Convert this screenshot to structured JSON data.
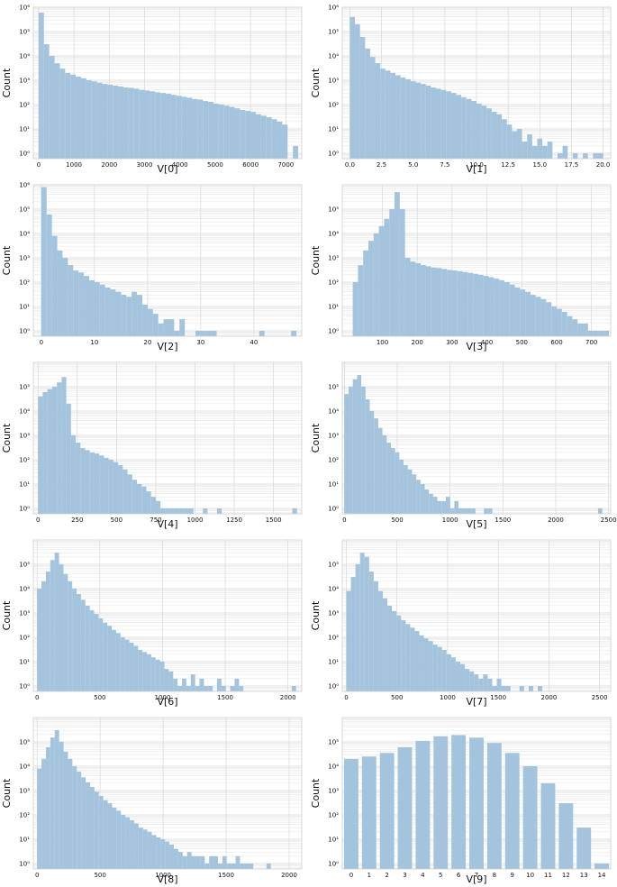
{
  "chart_data": [
    {
      "type": "bar",
      "title": "",
      "xlabel": "V[0]",
      "ylabel": "Count",
      "yscale": "log",
      "grid": true,
      "xlim": [
        -150,
        7450
      ],
      "ylim": [
        0.6,
        1000000
      ],
      "xticks": [
        0,
        1000,
        2000,
        3000,
        4000,
        5000,
        6000,
        7000
      ],
      "yticks": [
        1,
        10,
        100,
        1000,
        10000,
        100000,
        1000000
      ],
      "bin_edges": [
        0,
        150,
        300,
        450,
        600,
        750,
        900,
        1050,
        1200,
        1350,
        1500,
        1650,
        1800,
        1950,
        2100,
        2250,
        2400,
        2550,
        2700,
        2850,
        3000,
        3150,
        3300,
        3450,
        3600,
        3750,
        3900,
        4050,
        4200,
        4350,
        4500,
        4650,
        4800,
        4950,
        5100,
        5250,
        5400,
        5550,
        5700,
        5850,
        6000,
        6150,
        6300,
        6450,
        6600,
        6750,
        6900,
        7050,
        7200,
        7350
      ],
      "values": [
        600000,
        30000,
        10000,
        5000,
        3000,
        2000,
        1700,
        1400,
        1200,
        1000,
        900,
        800,
        700,
        650,
        600,
        550,
        500,
        480,
        450,
        400,
        380,
        350,
        320,
        300,
        280,
        250,
        230,
        210,
        190,
        170,
        160,
        140,
        130,
        110,
        100,
        90,
        80,
        70,
        60,
        55,
        50,
        40,
        35,
        30,
        25,
        20,
        15,
        0,
        2
      ]
    },
    {
      "type": "bar",
      "title": "",
      "xlabel": "V[1]",
      "ylabel": "Count",
      "yscale": "log",
      "grid": true,
      "xlim": [
        -0.6,
        20.6
      ],
      "ylim": [
        0.6,
        1000000
      ],
      "xticks": [
        0.0,
        2.5,
        5.0,
        7.5,
        10.0,
        12.5,
        15.0,
        17.5,
        20.0
      ],
      "xtick_labels": [
        "0.0",
        "2.5",
        "5.0",
        "7.5",
        "10.0",
        "12.5",
        "15.0",
        "17.5",
        "20.0"
      ],
      "yticks": [
        1,
        10,
        100,
        1000,
        10000,
        100000,
        1000000
      ],
      "bin_edges": [
        0,
        0.4,
        0.8,
        1.2,
        1.6,
        2.0,
        2.4,
        2.8,
        3.2,
        3.6,
        4.0,
        4.4,
        4.8,
        5.2,
        5.6,
        6.0,
        6.4,
        6.8,
        7.2,
        7.6,
        8.0,
        8.4,
        8.8,
        9.2,
        9.6,
        10.0,
        10.4,
        10.8,
        11.2,
        11.6,
        12.0,
        12.4,
        12.8,
        13.2,
        13.6,
        14.0,
        14.4,
        14.8,
        15.2,
        15.6,
        16.0,
        16.4,
        16.8,
        17.2,
        17.6,
        18.0,
        18.4,
        18.8,
        19.2,
        19.6,
        20.0
      ],
      "values": [
        400000,
        200000,
        60000,
        20000,
        9000,
        5000,
        3000,
        2500,
        2000,
        1600,
        1300,
        1100,
        900,
        800,
        700,
        600,
        500,
        450,
        400,
        350,
        300,
        250,
        200,
        170,
        140,
        110,
        90,
        70,
        50,
        40,
        25,
        15,
        8,
        10,
        3,
        6,
        2,
        4,
        2,
        3,
        0,
        1,
        2,
        0,
        1,
        0,
        1,
        0,
        1,
        1
      ]
    },
    {
      "type": "bar",
      "title": "",
      "xlabel": "V[2]",
      "ylabel": "Count",
      "yscale": "log",
      "grid": true,
      "xlim": [
        -1.5,
        49
      ],
      "ylim": [
        0.6,
        1000000
      ],
      "xticks": [
        0,
        10,
        20,
        30,
        40
      ],
      "yticks": [
        1,
        10,
        100,
        1000,
        10000,
        100000,
        1000000
      ],
      "bin_edges": [
        0,
        1,
        2,
        3,
        4,
        5,
        6,
        7,
        8,
        9,
        10,
        11,
        12,
        13,
        14,
        15,
        16,
        17,
        18,
        19,
        20,
        21,
        22,
        23,
        24,
        25,
        26,
        27,
        28,
        29,
        30,
        31,
        32,
        33,
        34,
        35,
        36,
        37,
        38,
        39,
        40,
        41,
        42,
        43,
        44,
        45,
        46,
        47,
        48
      ],
      "values": [
        800000,
        60000,
        8000,
        2000,
        1000,
        500,
        300,
        250,
        180,
        120,
        100,
        80,
        60,
        50,
        40,
        30,
        25,
        40,
        30,
        12,
        8,
        5,
        2,
        3,
        3,
        1,
        3,
        0,
        0,
        1,
        1,
        1,
        1,
        0,
        0,
        0,
        0,
        0,
        0,
        0,
        0,
        1,
        0,
        0,
        0,
        0,
        0,
        1
      ]
    },
    {
      "type": "bar",
      "title": "",
      "xlabel": "V[3]",
      "ylabel": "Count",
      "yscale": "log",
      "grid": true,
      "xlim": [
        -15,
        755
      ],
      "ylim": [
        0.6,
        1000000
      ],
      "xticks": [
        100,
        200,
        300,
        400,
        500,
        600,
        700
      ],
      "yticks": [
        1,
        10,
        100,
        1000,
        10000,
        100000
      ],
      "bin_edges": [
        15,
        30,
        45,
        60,
        75,
        90,
        105,
        120,
        135,
        150,
        165,
        180,
        195,
        210,
        225,
        240,
        255,
        270,
        285,
        300,
        315,
        330,
        345,
        360,
        375,
        390,
        405,
        420,
        435,
        450,
        465,
        480,
        495,
        510,
        525,
        540,
        555,
        570,
        585,
        600,
        615,
        630,
        645,
        660,
        675,
        690,
        705,
        720,
        735,
        750
      ],
      "values": [
        100,
        500,
        2000,
        5000,
        10000,
        20000,
        40000,
        100000,
        500000,
        100000,
        1000,
        700,
        600,
        500,
        450,
        400,
        380,
        350,
        320,
        300,
        280,
        260,
        240,
        220,
        200,
        180,
        160,
        140,
        120,
        100,
        80,
        60,
        50,
        40,
        30,
        25,
        20,
        15,
        10,
        8,
        6,
        4,
        3,
        2,
        2,
        1,
        1,
        1,
        1
      ]
    },
    {
      "type": "bar",
      "title": "",
      "xlabel": "V[4]",
      "ylabel": "Count",
      "yscale": "log",
      "grid": true,
      "xlim": [
        -30,
        1680
      ],
      "ylim": [
        0.6,
        1000000
      ],
      "xticks": [
        0,
        250,
        500,
        750,
        1000,
        1250,
        1500
      ],
      "yticks": [
        1,
        10,
        100,
        1000,
        10000,
        100000
      ],
      "bin_edges": [
        0,
        30,
        60,
        90,
        120,
        150,
        180,
        210,
        240,
        270,
        300,
        330,
        360,
        390,
        420,
        450,
        480,
        510,
        540,
        570,
        600,
        630,
        660,
        690,
        720,
        750,
        780,
        810,
        840,
        870,
        900,
        930,
        960,
        990,
        1020,
        1050,
        1080,
        1110,
        1140,
        1170,
        1200,
        1230,
        1260,
        1290,
        1320,
        1350,
        1380,
        1410,
        1440,
        1470,
        1500,
        1530,
        1560,
        1590,
        1620,
        1650
      ],
      "values": [
        40000,
        60000,
        80000,
        100000,
        150000,
        250000,
        20000,
        1000,
        500,
        300,
        250,
        200,
        180,
        150,
        120,
        100,
        80,
        60,
        40,
        25,
        15,
        10,
        8,
        5,
        3,
        2,
        1,
        1,
        1,
        1,
        1,
        1,
        1,
        0,
        0,
        1,
        0,
        0,
        1,
        0,
        0,
        0,
        0,
        0,
        0,
        0,
        0,
        0,
        0,
        0,
        0,
        0,
        0,
        0,
        1
      ]
    },
    {
      "type": "bar",
      "title": "",
      "xlabel": "V[5]",
      "ylabel": "Count",
      "yscale": "log",
      "grid": true,
      "xlim": [
        -20,
        2520
      ],
      "ylim": [
        0.6,
        1000000
      ],
      "xticks": [
        0,
        500,
        1000,
        1500,
        2000,
        2500
      ],
      "yticks": [
        1,
        10,
        100,
        1000,
        10000,
        100000
      ],
      "bin_edges": [
        0,
        40,
        80,
        120,
        160,
        200,
        240,
        280,
        320,
        360,
        400,
        440,
        480,
        520,
        560,
        600,
        640,
        680,
        720,
        760,
        800,
        840,
        880,
        920,
        960,
        1000,
        1040,
        1080,
        1120,
        1160,
        1200,
        1240,
        1280,
        1320,
        1360,
        1400,
        1440,
        1480,
        1520,
        1560,
        1600,
        1640,
        1680,
        1720,
        1760,
        1800,
        1840,
        1880,
        1920,
        1960,
        2000,
        2040,
        2080,
        2120,
        2160,
        2200,
        2240,
        2280,
        2320,
        2360,
        2400,
        2440
      ],
      "values": [
        50000,
        100000,
        200000,
        300000,
        100000,
        30000,
        10000,
        5000,
        2000,
        1000,
        500,
        300,
        200,
        100,
        60,
        40,
        25,
        15,
        10,
        6,
        4,
        3,
        2,
        2,
        3,
        1,
        2,
        1,
        1,
        1,
        1,
        0,
        0,
        1,
        1,
        0,
        0,
        0,
        0,
        0,
        0,
        0,
        0,
        0,
        0,
        0,
        0,
        0,
        0,
        0,
        0,
        0,
        0,
        0,
        0,
        0,
        0,
        0,
        0,
        0,
        1
      ]
    },
    {
      "type": "bar",
      "title": "",
      "xlabel": "V[6]",
      "ylabel": "Count",
      "yscale": "log",
      "grid": true,
      "xlim": [
        -30,
        2110
      ],
      "ylim": [
        0.6,
        1000000
      ],
      "xticks": [
        0,
        500,
        1000,
        1500,
        2000
      ],
      "yticks": [
        1,
        10,
        100,
        1000,
        10000,
        100000
      ],
      "bin_edges": [
        0,
        35,
        70,
        105,
        140,
        175,
        210,
        245,
        280,
        315,
        350,
        385,
        420,
        455,
        490,
        525,
        560,
        595,
        630,
        665,
        700,
        735,
        770,
        805,
        840,
        875,
        910,
        945,
        980,
        1015,
        1050,
        1085,
        1120,
        1155,
        1190,
        1225,
        1260,
        1295,
        1330,
        1365,
        1400,
        1435,
        1470,
        1505,
        1540,
        1575,
        1610,
        1645,
        1680,
        1715,
        1750,
        1785,
        1820,
        1855,
        1890,
        1925,
        1960,
        1995,
        2030,
        2065
      ],
      "values": [
        10000,
        20000,
        50000,
        150000,
        300000,
        100000,
        40000,
        20000,
        10000,
        6000,
        3500,
        2000,
        1300,
        900,
        600,
        400,
        300,
        200,
        150,
        100,
        80,
        60,
        45,
        30,
        25,
        20,
        15,
        12,
        10,
        5,
        4,
        2,
        1,
        2,
        1,
        3,
        1,
        2,
        1,
        1,
        0,
        2,
        1,
        0,
        1,
        2,
        1,
        0,
        0,
        0,
        0,
        0,
        0,
        0,
        0,
        0,
        0,
        0,
        1
      ]
    },
    {
      "type": "bar",
      "title": "",
      "xlabel": "V[7]",
      "ylabel": "Count",
      "yscale": "log",
      "grid": true,
      "xlim": [
        -40,
        2610
      ],
      "ylim": [
        0.6,
        1000000
      ],
      "xticks": [
        0,
        500,
        1000,
        1500,
        2000,
        2500
      ],
      "yticks": [
        1,
        10,
        100,
        1000,
        10000,
        100000
      ],
      "bin_edges": [
        0,
        45,
        90,
        135,
        180,
        225,
        270,
        315,
        360,
        405,
        450,
        495,
        540,
        585,
        630,
        675,
        720,
        765,
        810,
        855,
        900,
        945,
        990,
        1035,
        1080,
        1125,
        1170,
        1215,
        1260,
        1305,
        1350,
        1395,
        1440,
        1485,
        1530,
        1575,
        1620,
        1665,
        1710,
        1755,
        1800,
        1845,
        1890,
        1935,
        1980,
        2025,
        2070,
        2115,
        2160,
        2205,
        2250,
        2295,
        2340,
        2385,
        2430,
        2475,
        2520,
        2565
      ],
      "values": [
        8000,
        30000,
        100000,
        300000,
        200000,
        50000,
        20000,
        8000,
        4000,
        2000,
        1200,
        800,
        500,
        350,
        250,
        180,
        120,
        90,
        70,
        50,
        40,
        30,
        20,
        15,
        10,
        8,
        5,
        4,
        3,
        2,
        3,
        2,
        1,
        2,
        1,
        1,
        0,
        0,
        1,
        0,
        1,
        0,
        1,
        0,
        0,
        0,
        0,
        0,
        0,
        0,
        0,
        0,
        0,
        0,
        0,
        0,
        0,
        1
      ]
    },
    {
      "type": "bar",
      "title": "",
      "xlabel": "V[8]",
      "ylabel": "Count",
      "yscale": "log",
      "grid": true,
      "xlim": [
        -30,
        2100
      ],
      "ylim": [
        0.6,
        1000000
      ],
      "xticks": [
        0,
        500,
        1000,
        1500,
        2000
      ],
      "yticks": [
        1,
        10,
        100,
        1000,
        10000,
        100000
      ],
      "bin_edges": [
        0,
        35,
        70,
        105,
        140,
        175,
        210,
        245,
        280,
        315,
        350,
        385,
        420,
        455,
        490,
        525,
        560,
        595,
        630,
        665,
        700,
        735,
        770,
        805,
        840,
        875,
        910,
        945,
        980,
        1015,
        1050,
        1085,
        1120,
        1155,
        1190,
        1225,
        1260,
        1295,
        1330,
        1365,
        1400,
        1435,
        1470,
        1505,
        1540,
        1575,
        1610,
        1645,
        1680,
        1715,
        1750,
        1785,
        1820,
        1855,
        1890,
        1925,
        1960,
        1995,
        2030
      ],
      "values": [
        8000,
        20000,
        60000,
        150000,
        300000,
        100000,
        40000,
        20000,
        10000,
        6000,
        3500,
        2200,
        1400,
        900,
        600,
        400,
        300,
        200,
        150,
        100,
        80,
        60,
        45,
        30,
        25,
        20,
        15,
        12,
        10,
        8,
        6,
        4,
        3,
        2,
        3,
        2,
        2,
        2,
        1,
        2,
        2,
        1,
        2,
        1,
        1,
        2,
        1,
        1,
        1,
        0,
        0,
        0,
        1,
        0,
        0,
        0,
        0,
        0,
        1
      ]
    },
    {
      "type": "bar",
      "title": "",
      "xlabel": "V[9]",
      "ylabel": "Count",
      "yscale": "log",
      "grid": true,
      "ylim": [
        0.6,
        1000000
      ],
      "categories": [
        "0",
        "1",
        "2",
        "3",
        "4",
        "5",
        "6",
        "7",
        "8",
        "9",
        "10",
        "11",
        "12",
        "13",
        "14"
      ],
      "yticks": [
        1,
        10,
        100,
        1000,
        10000,
        100000
      ],
      "values": [
        20000,
        25000,
        35000,
        60000,
        110000,
        170000,
        190000,
        150000,
        90000,
        35000,
        10000,
        2000,
        300,
        30,
        1
      ]
    }
  ],
  "colors": {
    "bar": "#a3c4dc",
    "grid": "#d8d8d8",
    "background": "#ffffff",
    "text": "#111111"
  }
}
